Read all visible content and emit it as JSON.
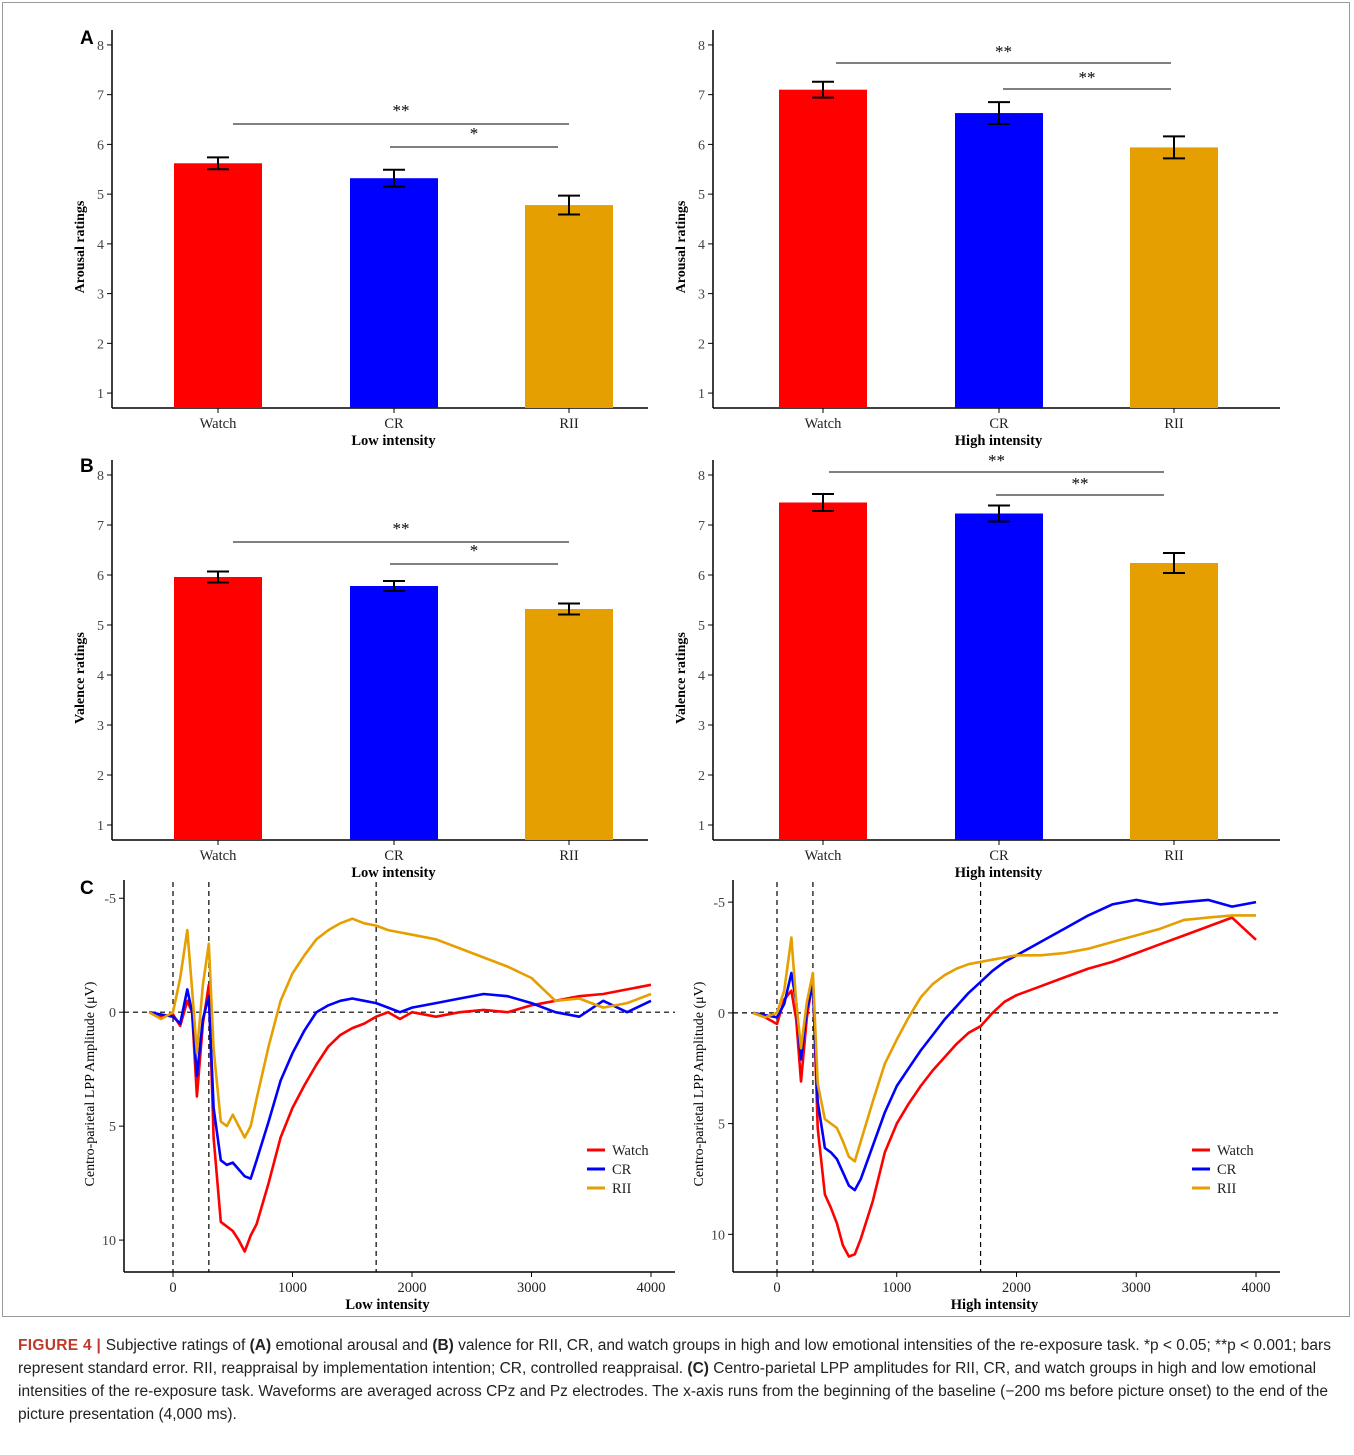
{
  "chart_data": [
    {
      "type": "bar",
      "panel": "A",
      "ylabel": "Arousal ratings",
      "xlabel": "Low intensity",
      "categories": [
        "Watch",
        "CR",
        "RII"
      ],
      "values": [
        5.62,
        5.32,
        4.78
      ],
      "errors": [
        0.12,
        0.17,
        0.19
      ],
      "colors": [
        "#ff0000",
        "#0000ff",
        "#e69f00"
      ],
      "ylim": [
        0.7,
        8.3
      ],
      "yticks": [
        "1",
        "2",
        "3",
        "4",
        "5",
        "6",
        "7",
        "8"
      ],
      "significance": [
        {
          "from": "Watch",
          "to": "RII",
          "label": "**"
        },
        {
          "from": "CR",
          "to": "RII",
          "label": "*"
        }
      ]
    },
    {
      "type": "bar",
      "panel": "",
      "ylabel": "Arousal ratings",
      "xlabel": "High intensity",
      "categories": [
        "Watch",
        "CR",
        "RII"
      ],
      "values": [
        7.1,
        6.63,
        5.94
      ],
      "errors": [
        0.16,
        0.22,
        0.22
      ],
      "colors": [
        "#ff0000",
        "#0000ff",
        "#e69f00"
      ],
      "ylim": [
        0.7,
        8.3
      ],
      "yticks": [
        "1",
        "2",
        "3",
        "4",
        "5",
        "6",
        "7",
        "8"
      ],
      "significance": [
        {
          "from": "Watch",
          "to": "RII",
          "label": "**"
        },
        {
          "from": "CR",
          "to": "RII",
          "label": "**"
        }
      ]
    },
    {
      "type": "bar",
      "panel": "B",
      "ylabel": "Valence ratings",
      "xlabel": "Low intensity",
      "categories": [
        "Watch",
        "CR",
        "RII"
      ],
      "values": [
        5.96,
        5.78,
        5.32
      ],
      "errors": [
        0.11,
        0.1,
        0.11
      ],
      "colors": [
        "#ff0000",
        "#0000ff",
        "#e69f00"
      ],
      "ylim": [
        0.7,
        8.3
      ],
      "yticks": [
        "1",
        "2",
        "3",
        "4",
        "5",
        "6",
        "7",
        "8"
      ],
      "significance": [
        {
          "from": "Watch",
          "to": "RII",
          "label": "**"
        },
        {
          "from": "CR",
          "to": "RII",
          "label": "*"
        }
      ]
    },
    {
      "type": "bar",
      "panel": "",
      "ylabel": "Valence ratings",
      "xlabel": "High intensity",
      "categories": [
        "Watch",
        "CR",
        "RII"
      ],
      "values": [
        7.45,
        7.23,
        6.24
      ],
      "errors": [
        0.17,
        0.16,
        0.2
      ],
      "colors": [
        "#ff0000",
        "#0000ff",
        "#e69f00"
      ],
      "ylim": [
        0.7,
        8.3
      ],
      "yticks": [
        "1",
        "2",
        "3",
        "4",
        "5",
        "6",
        "7",
        "8"
      ],
      "significance": [
        {
          "from": "Watch",
          "to": "RII",
          "label": "**"
        },
        {
          "from": "CR",
          "to": "RII",
          "label": "**"
        }
      ]
    },
    {
      "type": "line",
      "panel": "C",
      "ylabel": "Centro-parietal LPP Amplitude (μV)",
      "xlabel": "Low intensity",
      "xlim": [
        -350,
        4250
      ],
      "ylim": [
        -5.8,
        11.4
      ],
      "y_inverted": true,
      "xticks": [
        0,
        1000,
        2000,
        3000,
        4000
      ],
      "xtick_labels": [
        "0",
        "1000",
        "2000",
        "3000",
        "4000"
      ],
      "yticks": [
        -5,
        0,
        5,
        10
      ],
      "ytick_labels": [
        "-5",
        "0",
        "5",
        "10"
      ],
      "vlines": [
        0,
        300,
        1700
      ],
      "hline": 0,
      "legend": "bottom-right",
      "series": [
        {
          "name": "Watch",
          "color": "#ff0000",
          "x": [
            -200,
            -100,
            0,
            60,
            120,
            160,
            200,
            250,
            300,
            340,
            400,
            450,
            500,
            550,
            600,
            650,
            700,
            800,
            900,
            1000,
            1100,
            1200,
            1300,
            1400,
            1500,
            1600,
            1700,
            1800,
            1900,
            2000,
            2200,
            2400,
            2600,
            2800,
            3000,
            3200,
            3400,
            3600,
            3800,
            4000
          ],
          "y": [
            0,
            0.2,
            0.1,
            0.6,
            -0.5,
            0,
            3.7,
            0.5,
            -1.2,
            5.5,
            9.2,
            9.4,
            9.6,
            10,
            10.5,
            9.8,
            9.3,
            7.5,
            5.5,
            4.2,
            3.2,
            2.3,
            1.5,
            1,
            0.7,
            0.5,
            0.2,
            0,
            0.3,
            0,
            0.2,
            0,
            -0.1,
            0,
            -0.3,
            -0.5,
            -0.7,
            -0.8,
            -1,
            -1.2
          ]
        },
        {
          "name": "CR",
          "color": "#0000ff",
          "x": [
            -200,
            -100,
            0,
            60,
            120,
            160,
            200,
            250,
            300,
            340,
            400,
            450,
            500,
            550,
            600,
            650,
            700,
            800,
            900,
            1000,
            1100,
            1200,
            1300,
            1400,
            1500,
            1600,
            1700,
            1800,
            1900,
            2000,
            2200,
            2400,
            2600,
            2800,
            3000,
            3200,
            3400,
            3600,
            3800,
            4000
          ],
          "y": [
            0,
            0.1,
            0.2,
            0.5,
            -1,
            0,
            2.8,
            0.3,
            -0.7,
            4.2,
            6.5,
            6.7,
            6.6,
            6.9,
            7.2,
            7.3,
            6.5,
            4.8,
            3,
            1.8,
            0.8,
            0,
            -0.3,
            -0.5,
            -0.6,
            -0.5,
            -0.4,
            -0.2,
            0,
            -0.2,
            -0.4,
            -0.6,
            -0.8,
            -0.7,
            -0.4,
            0,
            0.2,
            -0.5,
            0,
            -0.5
          ]
        },
        {
          "name": "RII",
          "color": "#e69f00",
          "x": [
            -200,
            -100,
            0,
            60,
            120,
            160,
            200,
            250,
            300,
            340,
            400,
            450,
            500,
            550,
            600,
            650,
            700,
            800,
            900,
            1000,
            1100,
            1200,
            1300,
            1400,
            1500,
            1600,
            1700,
            1800,
            1900,
            2000,
            2200,
            2400,
            2600,
            2800,
            3000,
            3200,
            3400,
            3600,
            3800,
            4000
          ],
          "y": [
            0,
            0.3,
            0,
            -1.5,
            -3.6,
            -1,
            1.8,
            -1.2,
            -3,
            1.6,
            4.8,
            5,
            4.5,
            5,
            5.5,
            5,
            3.8,
            1.5,
            -0.5,
            -1.7,
            -2.5,
            -3.2,
            -3.6,
            -3.9,
            -4.1,
            -3.9,
            -3.8,
            -3.6,
            -3.5,
            -3.4,
            -3.2,
            -2.8,
            -2.4,
            -2,
            -1.5,
            -0.5,
            -0.6,
            -0.2,
            -0.4,
            -0.8
          ]
        }
      ]
    },
    {
      "type": "line",
      "panel": "",
      "ylabel": "Centro-parietal LPP Amplitude (μV)",
      "xlabel": "High intensity",
      "xlim": [
        -350,
        4250
      ],
      "ylim": [
        -6.0,
        11.7
      ],
      "y_inverted": true,
      "xticks": [
        0,
        1000,
        2000,
        3000,
        4000
      ],
      "xtick_labels": [
        "0",
        "1000",
        "2000",
        "3000",
        "4000"
      ],
      "yticks": [
        -5,
        0,
        5,
        10
      ],
      "ytick_labels": [
        "-5",
        "0",
        "5",
        "10"
      ],
      "vlines": [
        0,
        300,
        1700
      ],
      "hline": 0,
      "legend": "bottom-right",
      "series": [
        {
          "name": "Watch",
          "color": "#ff0000",
          "x": [
            -200,
            -100,
            0,
            60,
            120,
            160,
            200,
            250,
            300,
            340,
            400,
            450,
            500,
            550,
            600,
            650,
            700,
            800,
            900,
            1000,
            1100,
            1200,
            1300,
            1400,
            1500,
            1600,
            1700,
            1800,
            1900,
            2000,
            2200,
            2400,
            2600,
            2800,
            3000,
            3200,
            3400,
            3600,
            3800,
            4000
          ],
          "y": [
            0,
            0.2,
            0.5,
            -0.6,
            -1,
            0.3,
            3.1,
            0.2,
            -1.5,
            5.2,
            8.2,
            8.8,
            9.5,
            10.5,
            11,
            10.9,
            10.2,
            8.5,
            6.3,
            5,
            4.1,
            3.3,
            2.6,
            2,
            1.4,
            0.9,
            0.6,
            0,
            -0.5,
            -0.8,
            -1.2,
            -1.6,
            -2,
            -2.3,
            -2.7,
            -3.1,
            -3.5,
            -3.9,
            -4.3,
            -3.3
          ]
        },
        {
          "name": "CR",
          "color": "#0000ff",
          "x": [
            -200,
            -100,
            0,
            60,
            120,
            160,
            200,
            250,
            300,
            340,
            400,
            450,
            500,
            550,
            600,
            650,
            700,
            800,
            900,
            1000,
            1100,
            1200,
            1300,
            1400,
            1500,
            1600,
            1700,
            1800,
            1900,
            2000,
            2200,
            2400,
            2600,
            2800,
            3000,
            3200,
            3400,
            3600,
            3800,
            4000
          ],
          "y": [
            0,
            0.1,
            0.2,
            -0.4,
            -1.8,
            -0.5,
            2.1,
            -0.2,
            -1.2,
            4,
            6.1,
            6.3,
            6.6,
            7.2,
            7.8,
            8,
            7.5,
            6,
            4.5,
            3.3,
            2.5,
            1.7,
            1,
            0.3,
            -0.3,
            -0.9,
            -1.4,
            -1.9,
            -2.3,
            -2.6,
            -3.2,
            -3.8,
            -4.4,
            -4.9,
            -5.1,
            -4.9,
            -5,
            -5.1,
            -4.8,
            -5
          ]
        },
        {
          "name": "RII",
          "color": "#e69f00",
          "x": [
            -200,
            -100,
            0,
            60,
            120,
            160,
            200,
            250,
            300,
            340,
            400,
            450,
            500,
            550,
            600,
            650,
            700,
            800,
            900,
            1000,
            1100,
            1200,
            1300,
            1400,
            1500,
            1600,
            1700,
            1800,
            1900,
            2000,
            2200,
            2400,
            2600,
            2800,
            3000,
            3200,
            3400,
            3600,
            3800,
            4000
          ],
          "y": [
            0,
            0.2,
            0,
            -1,
            -3.4,
            -0.5,
            1.6,
            -0.5,
            -1.8,
            3.2,
            4.8,
            5,
            5.2,
            5.8,
            6.5,
            6.7,
            5.8,
            4,
            2.3,
            1.2,
            0.2,
            -0.7,
            -1.3,
            -1.7,
            -2,
            -2.2,
            -2.3,
            -2.4,
            -2.5,
            -2.6,
            -2.6,
            -2.7,
            -2.9,
            -3.2,
            -3.5,
            -3.8,
            -4.2,
            -4.3,
            -4.4,
            -4.4
          ]
        }
      ]
    }
  ],
  "caption": {
    "figure_label": "FIGURE 4",
    "separator": " | ",
    "p1": "Subjective ratings of ",
    "a_label": "(A)",
    "p2": " emotional arousal and ",
    "b_label": "(B)",
    "p3": " valence for RII, CR, and watch groups in high and low emotional intensities of the re-exposure task. *p < 0.05; **p < 0.001; bars represent standard error. RII, reappraisal by implementation intention; CR, controlled reappraisal. ",
    "c_label": "(C)",
    "p4": " Centro-parietal LPP amplitudes for RII, CR, and watch groups in high and low emotional intensities of the re-exposure task. Waveforms are averaged across CPz and Pz electrodes. The x-axis runs from the beginning of the baseline (−200 ms before picture onset) to the end of the picture presentation (4,000 ms)."
  }
}
